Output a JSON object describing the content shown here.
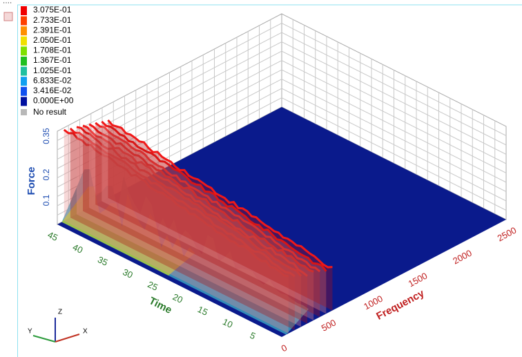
{
  "legend": {
    "levels": [
      "3.075E-01",
      "2.733E-01",
      "2.391E-01",
      "2.050E-01",
      "1.708E-01",
      "1.367E-01",
      "1.025E-01",
      "6.833E-02",
      "3.416E-02",
      "0.000E+00"
    ],
    "no_result": "No result"
  },
  "axes": {
    "force": {
      "title": "Force",
      "ticks": [
        "0.35",
        "0.2",
        "0.1"
      ]
    },
    "time": {
      "title": "Time",
      "ticks": [
        "45",
        "40",
        "35",
        "30",
        "25",
        "20",
        "15",
        "10",
        "5"
      ]
    },
    "frequency": {
      "title": "Frequency",
      "ticks": [
        "0",
        "500",
        "1000",
        "1500",
        "2000",
        "2500"
      ]
    }
  },
  "triad": {
    "x": "X",
    "y": "Y",
    "z": "Z"
  }
}
